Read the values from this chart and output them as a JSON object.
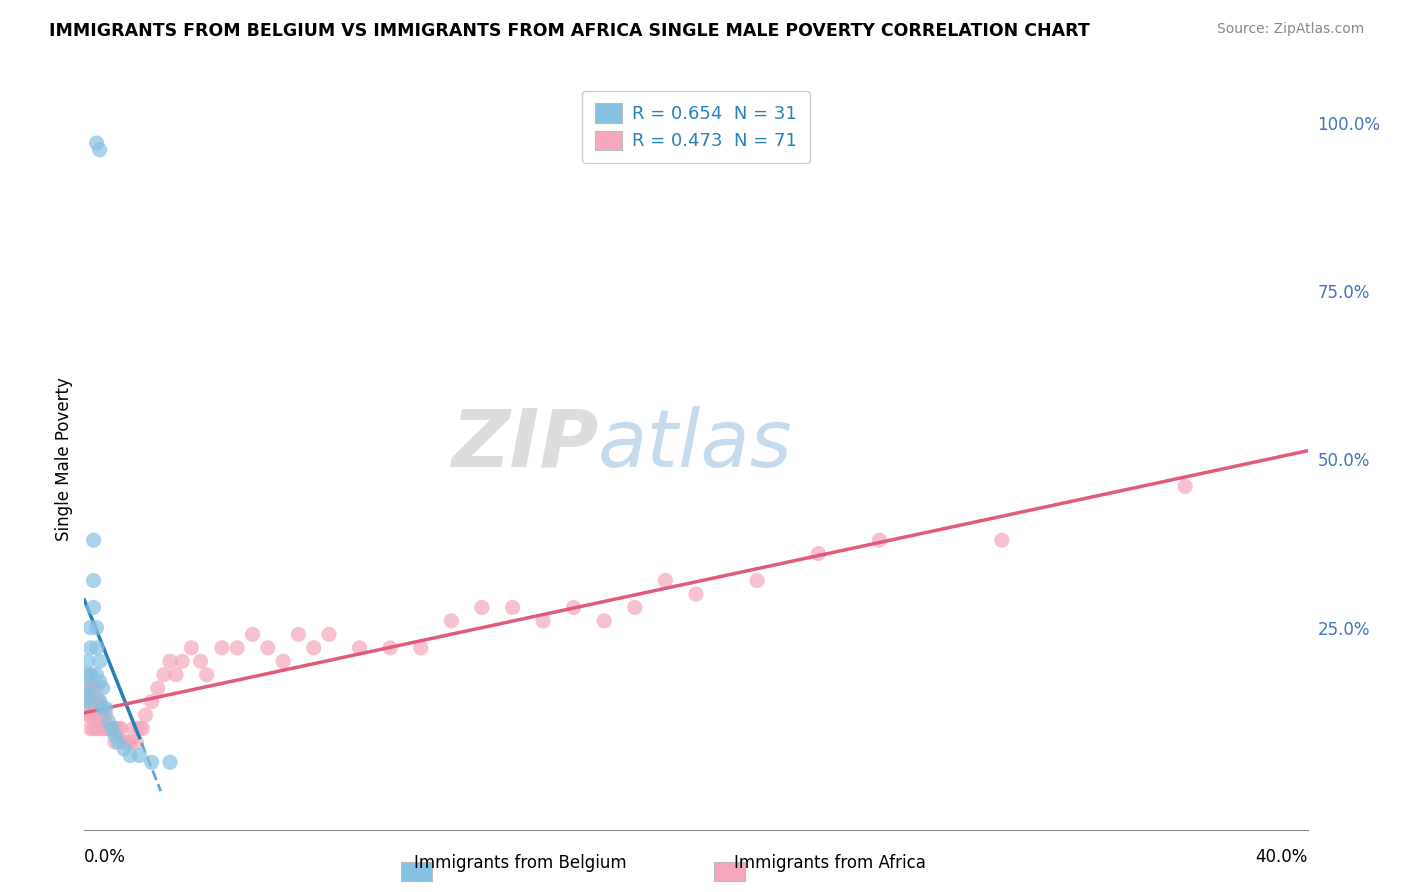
{
  "title": "IMMIGRANTS FROM BELGIUM VS IMMIGRANTS FROM AFRICA SINGLE MALE POVERTY CORRELATION CHART",
  "source": "Source: ZipAtlas.com",
  "ylabel": "Single Male Poverty",
  "legend_belgium": "R = 0.654  N = 31",
  "legend_africa": "R = 0.473  N = 71",
  "legend_label_belgium": "Immigrants from Belgium",
  "legend_label_africa": "Immigrants from Africa",
  "color_belgium": "#85c1e3",
  "color_africa": "#f4a7bb",
  "trendline_belgium": "#2980b9",
  "trendline_africa": "#e05a7a",
  "background_color": "#ffffff",
  "xlim": [
    0.0,
    0.4
  ],
  "ylim": [
    -0.05,
    1.05
  ],
  "belgium_x": [
    0.004,
    0.005,
    0.001,
    0.001,
    0.001,
    0.001,
    0.002,
    0.002,
    0.002,
    0.002,
    0.003,
    0.003,
    0.003,
    0.004,
    0.004,
    0.004,
    0.005,
    0.005,
    0.005,
    0.006,
    0.006,
    0.007,
    0.008,
    0.009,
    0.01,
    0.011,
    0.013,
    0.015,
    0.018,
    0.022,
    0.028
  ],
  "belgium_y": [
    0.97,
    0.96,
    0.2,
    0.18,
    0.16,
    0.14,
    0.25,
    0.22,
    0.18,
    0.15,
    0.38,
    0.32,
    0.28,
    0.25,
    0.22,
    0.18,
    0.2,
    0.17,
    0.14,
    0.16,
    0.13,
    0.13,
    0.11,
    0.1,
    0.09,
    0.08,
    0.07,
    0.06,
    0.06,
    0.05,
    0.05
  ],
  "africa_x": [
    0.001,
    0.001,
    0.001,
    0.002,
    0.002,
    0.002,
    0.002,
    0.002,
    0.003,
    0.003,
    0.003,
    0.003,
    0.004,
    0.004,
    0.004,
    0.004,
    0.005,
    0.005,
    0.005,
    0.006,
    0.006,
    0.007,
    0.007,
    0.008,
    0.009,
    0.01,
    0.01,
    0.011,
    0.012,
    0.013,
    0.014,
    0.015,
    0.016,
    0.017,
    0.018,
    0.019,
    0.02,
    0.022,
    0.024,
    0.026,
    0.028,
    0.03,
    0.032,
    0.035,
    0.038,
    0.04,
    0.045,
    0.05,
    0.055,
    0.06,
    0.065,
    0.07,
    0.075,
    0.08,
    0.09,
    0.1,
    0.11,
    0.12,
    0.13,
    0.14,
    0.15,
    0.16,
    0.17,
    0.18,
    0.19,
    0.2,
    0.22,
    0.24,
    0.26,
    0.3,
    0.36
  ],
  "africa_y": [
    0.16,
    0.14,
    0.12,
    0.18,
    0.16,
    0.14,
    0.12,
    0.1,
    0.16,
    0.14,
    0.12,
    0.1,
    0.16,
    0.14,
    0.12,
    0.1,
    0.14,
    0.12,
    0.1,
    0.12,
    0.1,
    0.12,
    0.1,
    0.1,
    0.1,
    0.1,
    0.08,
    0.1,
    0.1,
    0.08,
    0.08,
    0.08,
    0.1,
    0.08,
    0.1,
    0.1,
    0.12,
    0.14,
    0.16,
    0.18,
    0.2,
    0.18,
    0.2,
    0.22,
    0.2,
    0.18,
    0.22,
    0.22,
    0.24,
    0.22,
    0.2,
    0.24,
    0.22,
    0.24,
    0.22,
    0.22,
    0.22,
    0.26,
    0.28,
    0.28,
    0.26,
    0.28,
    0.26,
    0.28,
    0.32,
    0.3,
    0.32,
    0.36,
    0.38,
    0.38,
    0.46
  ]
}
